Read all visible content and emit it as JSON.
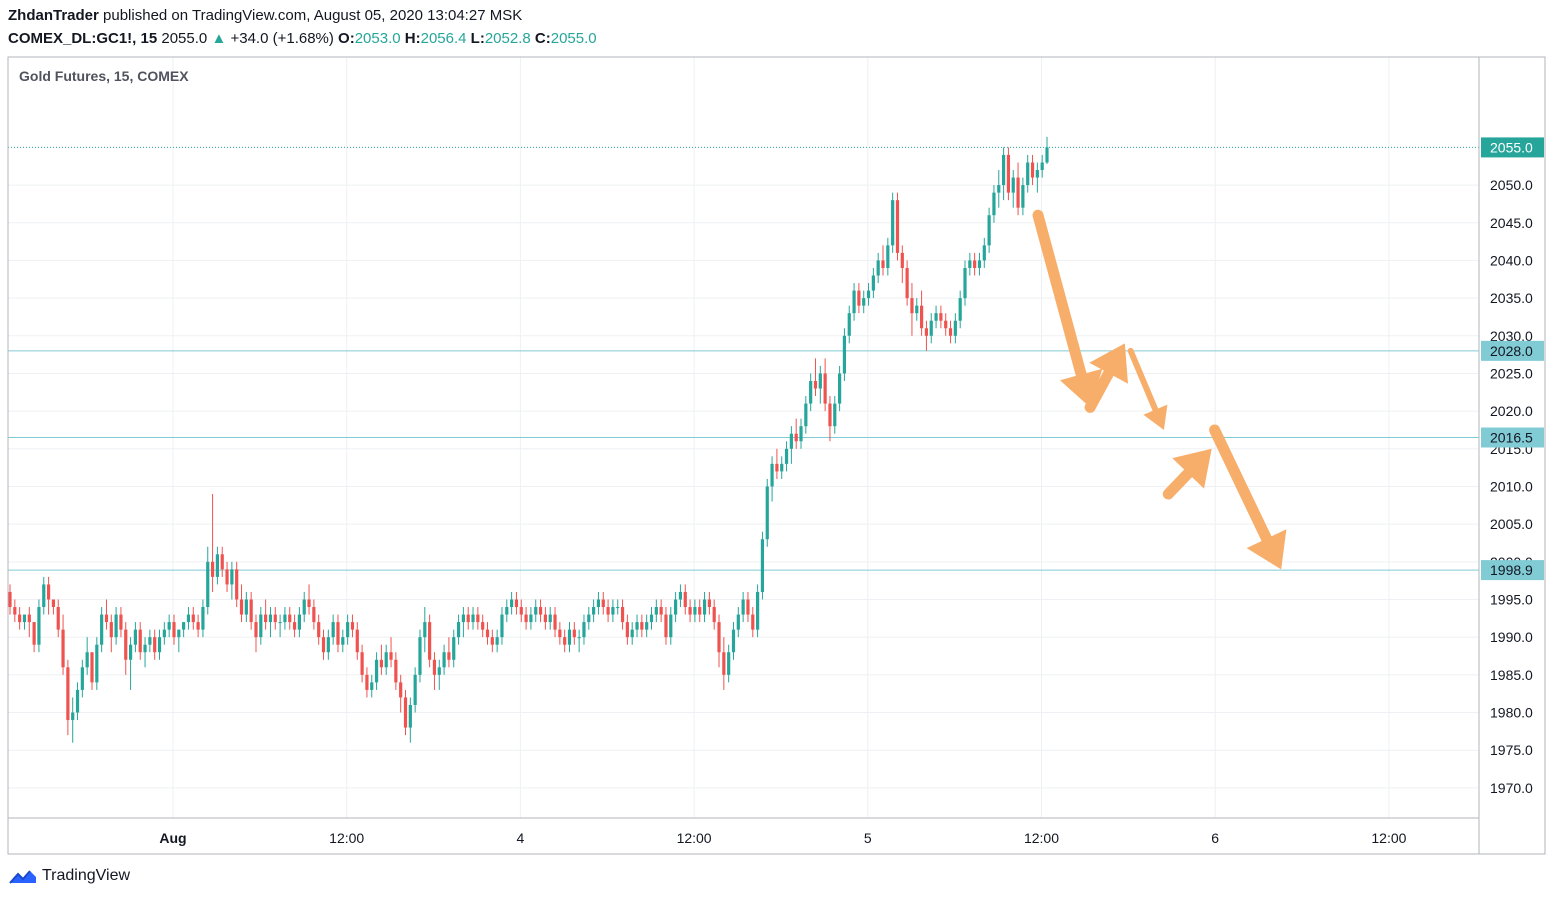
{
  "header": {
    "author": "ZhdanTrader",
    "published_text": "published on TradingView.com, August 05, 2020 13:04:27 MSK",
    "symbol": "COMEX_DL:GC1!, 15",
    "last": "2055.0",
    "change": "+34.0 (+1.68%)",
    "o_label": "O:",
    "o_value": "2053.0",
    "h_label": "H:",
    "h_value": "2056.4",
    "l_label": "L:",
    "l_value": "2052.8",
    "c_label": "C:",
    "c_value": "2055.0"
  },
  "footer": {
    "brand": "TradingView"
  },
  "chart_data": {
    "type": "candlestick",
    "title": "Gold Futures, 15, COMEX",
    "ylim": [
      1966.0,
      2067.0
    ],
    "y_ticks": [
      "2050.0",
      "2045.0",
      "2040.0",
      "2035.0",
      "2030.0",
      "2025.0",
      "2020.0",
      "2015.0",
      "2010.0",
      "2005.0",
      "2000.0",
      "1995.0",
      "1990.0",
      "1985.0",
      "1980.0",
      "1975.0",
      "1970.0"
    ],
    "x_ticks": [
      "Aug",
      "12:00",
      "4",
      "12:00",
      "5",
      "12:00",
      "6",
      "12:00"
    ],
    "price_labels": [
      {
        "value": 2055.0,
        "text": "2055.0",
        "color": "#26a69a"
      },
      {
        "value": 2028.0,
        "text": "2028.0",
        "color": "#80cbd4"
      },
      {
        "value": 2016.5,
        "text": "2016.5",
        "color": "#80cbd4"
      },
      {
        "value": 1998.9,
        "text": "1998.9",
        "color": "#80cbd4"
      }
    ],
    "horizontal_levels": [
      2028.0,
      2016.5,
      1998.9
    ],
    "last_price": 2055.0,
    "colors": {
      "up": "#26a69a",
      "down": "#ef5350",
      "level": "#80cbd4",
      "arrow": "#f7ae6a",
      "grid": "#eef0f3"
    },
    "projection_arrows": [
      {
        "from": [
          0.0,
          2046.0
        ],
        "to": [
          3.6,
          2020.5
        ],
        "style": "thick"
      },
      {
        "from": [
          3.6,
          2020.5
        ],
        "to": [
          6.0,
          2029.0
        ],
        "style": "thick"
      },
      {
        "from": [
          6.4,
          2028.0
        ],
        "to": [
          8.7,
          2017.5
        ],
        "style": "thin"
      },
      {
        "from": [
          9.0,
          2009.0
        ],
        "to": [
          12.0,
          2015.0
        ],
        "style": "thick"
      },
      {
        "from": [
          12.2,
          2017.5
        ],
        "to": [
          16.8,
          1999.0
        ],
        "style": "thick"
      }
    ],
    "candles": [
      [
        1996,
        1997,
        1993,
        1994
      ],
      [
        1994,
        1995,
        1992,
        1993
      ],
      [
        1993,
        1994,
        1991,
        1992
      ],
      [
        1992,
        1993,
        1991,
        1993
      ],
      [
        1993,
        1994,
        1990,
        1992
      ],
      [
        1992,
        1992,
        1988,
        1989
      ],
      [
        1989,
        1995,
        1988,
        1994
      ],
      [
        1994,
        1998,
        1993,
        1997
      ],
      [
        1997,
        1998,
        1993,
        1995
      ],
      [
        1995,
        1995,
        1993,
        1994
      ],
      [
        1994,
        1995,
        1990,
        1991
      ],
      [
        1991,
        1993,
        1985,
        1986
      ],
      [
        1986,
        1987,
        1977,
        1979
      ],
      [
        1979,
        1982,
        1976,
        1980
      ],
      [
        1980,
        1984,
        1979,
        1983
      ],
      [
        1983,
        1987,
        1982,
        1986
      ],
      [
        1986,
        1990,
        1985,
        1988
      ],
      [
        1988,
        1988,
        1983,
        1984
      ],
      [
        1984,
        1990,
        1983,
        1989
      ],
      [
        1989,
        1994,
        1988,
        1993
      ],
      [
        1993,
        1995,
        1991,
        1992
      ],
      [
        1992,
        1993,
        1988,
        1990
      ],
      [
        1990,
        1994,
        1989,
        1993
      ],
      [
        1993,
        1994,
        1990,
        1991
      ],
      [
        1991,
        1992,
        1985,
        1987
      ],
      [
        1987,
        1990,
        1983,
        1989
      ],
      [
        1989,
        1992,
        1988,
        1991
      ],
      [
        1991,
        1992,
        1987,
        1988
      ],
      [
        1988,
        1990,
        1986,
        1989
      ],
      [
        1989,
        1991,
        1988,
        1990
      ],
      [
        1990,
        1991,
        1987,
        1988
      ],
      [
        1988,
        1991,
        1987,
        1990
      ],
      [
        1990,
        1992,
        1989,
        1991
      ],
      [
        1991,
        1993,
        1990,
        1992
      ],
      [
        1992,
        1993,
        1989,
        1990
      ],
      [
        1990,
        1991,
        1988,
        1991
      ],
      [
        1991,
        1992,
        1990,
        1992
      ],
      [
        1992,
        1994,
        1991,
        1993
      ],
      [
        1993,
        1994,
        1991,
        1992
      ],
      [
        1992,
        1993,
        1990,
        1991
      ],
      [
        1991,
        1995,
        1990,
        1994
      ],
      [
        1994,
        2002,
        1993,
        2000
      ],
      [
        2000,
        2009,
        1996,
        1998
      ],
      [
        1998,
        2002,
        1997,
        2001
      ],
      [
        2001,
        2002,
        1998,
        1999
      ],
      [
        1999,
        2000,
        1996,
        1997
      ],
      [
        1997,
        2000,
        1995,
        1999
      ],
      [
        1999,
        2000,
        1994,
        1995
      ],
      [
        1995,
        1997,
        1992,
        1993
      ],
      [
        1993,
        1996,
        1992,
        1995
      ],
      [
        1995,
        1996,
        1991,
        1992
      ],
      [
        1992,
        1993,
        1988,
        1990
      ],
      [
        1990,
        1994,
        1989,
        1993
      ],
      [
        1993,
        1995,
        1991,
        1992
      ],
      [
        1992,
        1994,
        1990,
        1993
      ],
      [
        1993,
        1994,
        1991,
        1992
      ],
      [
        1992,
        1993,
        1990,
        1992
      ],
      [
        1992,
        1994,
        1991,
        1993
      ],
      [
        1993,
        1994,
        1991,
        1992
      ],
      [
        1992,
        1993,
        1990,
        1991
      ],
      [
        1991,
        1994,
        1990,
        1993
      ],
      [
        1993,
        1996,
        1992,
        1995
      ],
      [
        1995,
        1997,
        1993,
        1994
      ],
      [
        1994,
        1995,
        1991,
        1992
      ],
      [
        1992,
        1993,
        1989,
        1990
      ],
      [
        1990,
        1991,
        1987,
        1988
      ],
      [
        1988,
        1991,
        1987,
        1990
      ],
      [
        1990,
        1993,
        1989,
        1992
      ],
      [
        1992,
        1993,
        1988,
        1989
      ],
      [
        1989,
        1991,
        1988,
        1990
      ],
      [
        1990,
        1993,
        1989,
        1992
      ],
      [
        1992,
        1993,
        1990,
        1991
      ],
      [
        1991,
        1992,
        1987,
        1988
      ],
      [
        1988,
        1989,
        1984,
        1985
      ],
      [
        1985,
        1986,
        1982,
        1983
      ],
      [
        1983,
        1985,
        1982,
        1984
      ],
      [
        1984,
        1988,
        1983,
        1987
      ],
      [
        1987,
        1989,
        1985,
        1986
      ],
      [
        1986,
        1989,
        1985,
        1988
      ],
      [
        1988,
        1990,
        1986,
        1987
      ],
      [
        1987,
        1988,
        1983,
        1984
      ],
      [
        1984,
        1985,
        1980,
        1982
      ],
      [
        1982,
        1983,
        1977,
        1978
      ],
      [
        1978,
        1982,
        1976,
        1981
      ],
      [
        1981,
        1986,
        1980,
        1985
      ],
      [
        1985,
        1991,
        1984,
        1990
      ],
      [
        1990,
        1994,
        1988,
        1992
      ],
      [
        1992,
        1993,
        1986,
        1987
      ],
      [
        1987,
        1988,
        1983,
        1985
      ],
      [
        1985,
        1987,
        1983,
        1986
      ],
      [
        1986,
        1989,
        1985,
        1988
      ],
      [
        1988,
        1990,
        1986,
        1987
      ],
      [
        1987,
        1991,
        1986,
        1990
      ],
      [
        1990,
        1993,
        1989,
        1992
      ],
      [
        1992,
        1994,
        1990,
        1993
      ],
      [
        1993,
        1994,
        1991,
        1992
      ],
      [
        1992,
        1994,
        1991,
        1993
      ],
      [
        1993,
        1994,
        1991,
        1992
      ],
      [
        1992,
        1993,
        1990,
        1991
      ],
      [
        1991,
        1992,
        1989,
        1990
      ],
      [
        1990,
        1991,
        1988,
        1989
      ],
      [
        1989,
        1991,
        1988,
        1990
      ],
      [
        1990,
        1994,
        1989,
        1993
      ],
      [
        1993,
        1995,
        1992,
        1994
      ],
      [
        1994,
        1996,
        1993,
        1995
      ],
      [
        1995,
        1996,
        1993,
        1994
      ],
      [
        1994,
        1995,
        1992,
        1993
      ],
      [
        1993,
        1994,
        1991,
        1992
      ],
      [
        1992,
        1994,
        1991,
        1993
      ],
      [
        1993,
        1995,
        1992,
        1994
      ],
      [
        1994,
        1995,
        1992,
        1993
      ],
      [
        1993,
        1994,
        1991,
        1992
      ],
      [
        1992,
        1994,
        1991,
        1993
      ],
      [
        1993,
        1994,
        1990,
        1991
      ],
      [
        1991,
        1992,
        1989,
        1990
      ],
      [
        1990,
        1991,
        1988,
        1989
      ],
      [
        1989,
        1992,
        1988,
        1991
      ],
      [
        1991,
        1992,
        1989,
        1990
      ],
      [
        1990,
        1991,
        1988,
        1990
      ],
      [
        1990,
        1993,
        1989,
        1992
      ],
      [
        1992,
        1994,
        1991,
        1993
      ],
      [
        1993,
        1995,
        1992,
        1994
      ],
      [
        1994,
        1996,
        1993,
        1995
      ],
      [
        1995,
        1996,
        1993,
        1994
      ],
      [
        1994,
        1995,
        1992,
        1993
      ],
      [
        1993,
        1995,
        1992,
        1994
      ],
      [
        1994,
        1995,
        1993,
        1994
      ],
      [
        1994,
        1995,
        1991,
        1992
      ],
      [
        1992,
        1993,
        1989,
        1990
      ],
      [
        1990,
        1992,
        1989,
        1991
      ],
      [
        1991,
        1993,
        1990,
        1992
      ],
      [
        1992,
        1993,
        1990,
        1991
      ],
      [
        1991,
        1993,
        1990,
        1992
      ],
      [
        1992,
        1994,
        1991,
        1993
      ],
      [
        1993,
        1995,
        1992,
        1994
      ],
      [
        1994,
        1995,
        1992,
        1993
      ],
      [
        1993,
        1994,
        1989,
        1990
      ],
      [
        1990,
        1994,
        1989,
        1993
      ],
      [
        1993,
        1996,
        1992,
        1995
      ],
      [
        1995,
        1997,
        1994,
        1996
      ],
      [
        1996,
        1997,
        1993,
        1994
      ],
      [
        1994,
        1995,
        1992,
        1993
      ],
      [
        1993,
        1995,
        1992,
        1994
      ],
      [
        1994,
        1995,
        1992,
        1993
      ],
      [
        1993,
        1996,
        1992,
        1995
      ],
      [
        1995,
        1996,
        1993,
        1994
      ],
      [
        1994,
        1995,
        1991,
        1992
      ],
      [
        1992,
        1993,
        1986,
        1988
      ],
      [
        1988,
        1990,
        1983,
        1985
      ],
      [
        1985,
        1989,
        1984,
        1988
      ],
      [
        1988,
        1992,
        1987,
        1991
      ],
      [
        1991,
        1994,
        1990,
        1993
      ],
      [
        1993,
        1996,
        1992,
        1995
      ],
      [
        1995,
        1996,
        1992,
        1993
      ],
      [
        1993,
        1994,
        1990,
        1991
      ],
      [
        1991,
        1997,
        1990,
        1996
      ],
      [
        1996,
        2004,
        1995,
        2003
      ],
      [
        2003,
        2011,
        2002,
        2010
      ],
      [
        2010,
        2014,
        2008,
        2013
      ],
      [
        2013,
        2015,
        2011,
        2012
      ],
      [
        2012,
        2014,
        2011,
        2013
      ],
      [
        2013,
        2016,
        2012,
        2015
      ],
      [
        2015,
        2018,
        2013,
        2017
      ],
      [
        2017,
        2019,
        2015,
        2016
      ],
      [
        2016,
        2019,
        2015,
        2018
      ],
      [
        2018,
        2022,
        2017,
        2021
      ],
      [
        2021,
        2025,
        2020,
        2024
      ],
      [
        2024,
        2027,
        2022,
        2023
      ],
      [
        2023,
        2026,
        2021,
        2025
      ],
      [
        2025,
        2027,
        2020,
        2021
      ],
      [
        2021,
        2022,
        2016,
        2018
      ],
      [
        2018,
        2022,
        2017,
        2021
      ],
      [
        2021,
        2026,
        2020,
        2025
      ],
      [
        2025,
        2031,
        2024,
        2030
      ],
      [
        2030,
        2034,
        2029,
        2033
      ],
      [
        2033,
        2037,
        2032,
        2036
      ],
      [
        2036,
        2037,
        2033,
        2034
      ],
      [
        2034,
        2036,
        2033,
        2035
      ],
      [
        2035,
        2037,
        2034,
        2036
      ],
      [
        2036,
        2039,
        2035,
        2038
      ],
      [
        2038,
        2041,
        2037,
        2040
      ],
      [
        2040,
        2042,
        2038,
        2039
      ],
      [
        2039,
        2043,
        2038,
        2042
      ],
      [
        2042,
        2049,
        2041,
        2048
      ],
      [
        2048,
        2049,
        2040,
        2041
      ],
      [
        2041,
        2042,
        2037,
        2039
      ],
      [
        2039,
        2040,
        2034,
        2035
      ],
      [
        2035,
        2037,
        2030,
        2033
      ],
      [
        2033,
        2035,
        2032,
        2034
      ],
      [
        2034,
        2036,
        2030,
        2031
      ],
      [
        2031,
        2032,
        2028,
        2030
      ],
      [
        2030,
        2033,
        2029,
        2032
      ],
      [
        2032,
        2034,
        2031,
        2033
      ],
      [
        2033,
        2034,
        2031,
        2032
      ],
      [
        2032,
        2033,
        2030,
        2031
      ],
      [
        2031,
        2032,
        2029,
        2030
      ],
      [
        2030,
        2033,
        2029,
        2032
      ],
      [
        2032,
        2036,
        2031,
        2035
      ],
      [
        2035,
        2040,
        2034,
        2039
      ],
      [
        2039,
        2041,
        2038,
        2040
      ],
      [
        2040,
        2041,
        2038,
        2039
      ],
      [
        2039,
        2041,
        2038,
        2040
      ],
      [
        2040,
        2043,
        2039,
        2042
      ],
      [
        2042,
        2047,
        2041,
        2046
      ],
      [
        2046,
        2050,
        2045,
        2049
      ],
      [
        2049,
        2052,
        2047,
        2050
      ],
      [
        2050,
        2055,
        2048,
        2054
      ],
      [
        2054,
        2055,
        2048,
        2049
      ],
      [
        2049,
        2052,
        2047,
        2051
      ],
      [
        2051,
        2053,
        2046,
        2047
      ],
      [
        2047,
        2051,
        2046,
        2050
      ],
      [
        2050,
        2054,
        2049,
        2053
      ],
      [
        2053,
        2054,
        2050,
        2051
      ],
      [
        2051,
        2053,
        2049,
        2052
      ],
      [
        2052,
        2054,
        2051,
        2053
      ],
      [
        2053,
        2056.4,
        2052.8,
        2055
      ]
    ]
  }
}
